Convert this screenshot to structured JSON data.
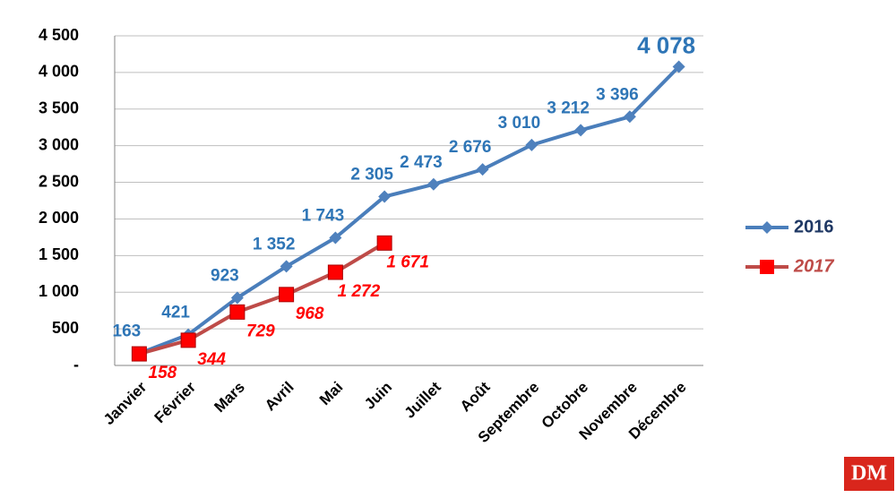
{
  "chart_data": {
    "type": "line",
    "categories": [
      "Janvier",
      "Février",
      "Mars",
      "Avril",
      "Mai",
      "Juin",
      "Juillet",
      "Août",
      "Septembre",
      "Octobre",
      "Novembre",
      "Décembre"
    ],
    "series": [
      {
        "name": "2016",
        "color": "#4a7ebb",
        "values": [
          163,
          421,
          923,
          1352,
          1743,
          2305,
          2473,
          2676,
          3010,
          3212,
          3396,
          4078
        ],
        "value_labels": [
          "163",
          "421",
          "923",
          "1 352",
          "1 743",
          "2 305",
          "2 473",
          "2 676",
          "3 010",
          "3 212",
          "3 396",
          "4 078"
        ]
      },
      {
        "name": "2017",
        "color": "#be4b48",
        "values": [
          158,
          344,
          729,
          968,
          1272,
          1671,
          null,
          null,
          null,
          null,
          null,
          null
        ],
        "value_labels": [
          "158",
          "344",
          "729",
          "968",
          "1 272",
          "1 671",
          null,
          null,
          null,
          null,
          null,
          null
        ]
      }
    ],
    "ylim": [
      0,
      4500
    ],
    "yticks": [
      {
        "value": 0,
        "label": "-"
      },
      500,
      {
        "value": 1000,
        "label": "1 000"
      },
      {
        "value": 1500,
        "label": "1 500"
      },
      {
        "value": 2000,
        "label": "2 000"
      },
      {
        "value": 2500,
        "label": "2 500"
      },
      {
        "value": 3000,
        "label": "3 000"
      },
      {
        "value": 3500,
        "label": "3 500"
      },
      {
        "value": 4000,
        "label": "4 000"
      },
      {
        "value": 4500,
        "label": "4 500"
      }
    ],
    "grid": true,
    "legend": "right"
  },
  "logo": "DM"
}
